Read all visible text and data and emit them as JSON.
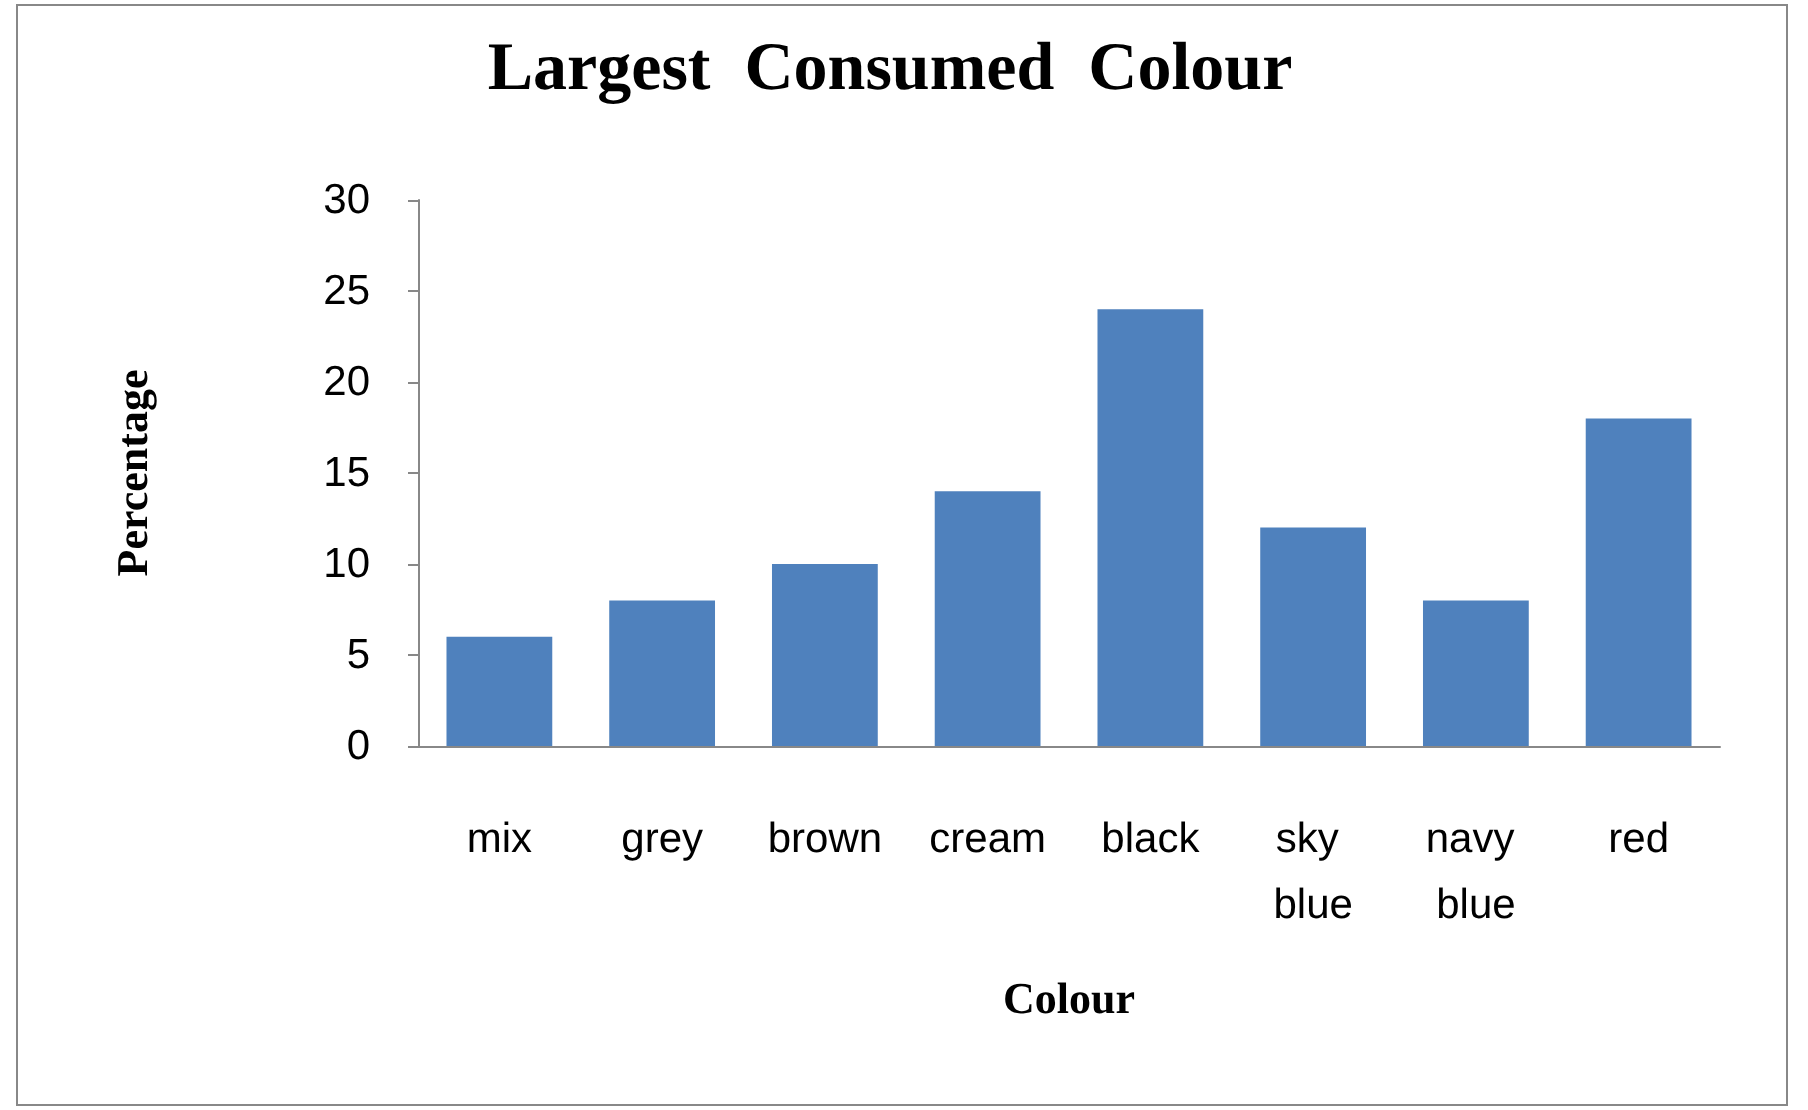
{
  "chart_data": {
    "type": "bar",
    "title": "Largest  Consumed  Colour",
    "xlabel": "Colour",
    "ylabel": "Percentage",
    "categories": [
      "mix",
      "grey",
      "brown",
      "cream",
      "black",
      "sky blue",
      "navy blue",
      "red"
    ],
    "values": [
      6,
      8,
      10,
      14,
      24,
      12,
      8,
      18
    ],
    "color": "#4f81bd",
    "ylim": [
      0,
      30
    ],
    "yticks": [
      0,
      5,
      10,
      15,
      20,
      25,
      30
    ]
  }
}
